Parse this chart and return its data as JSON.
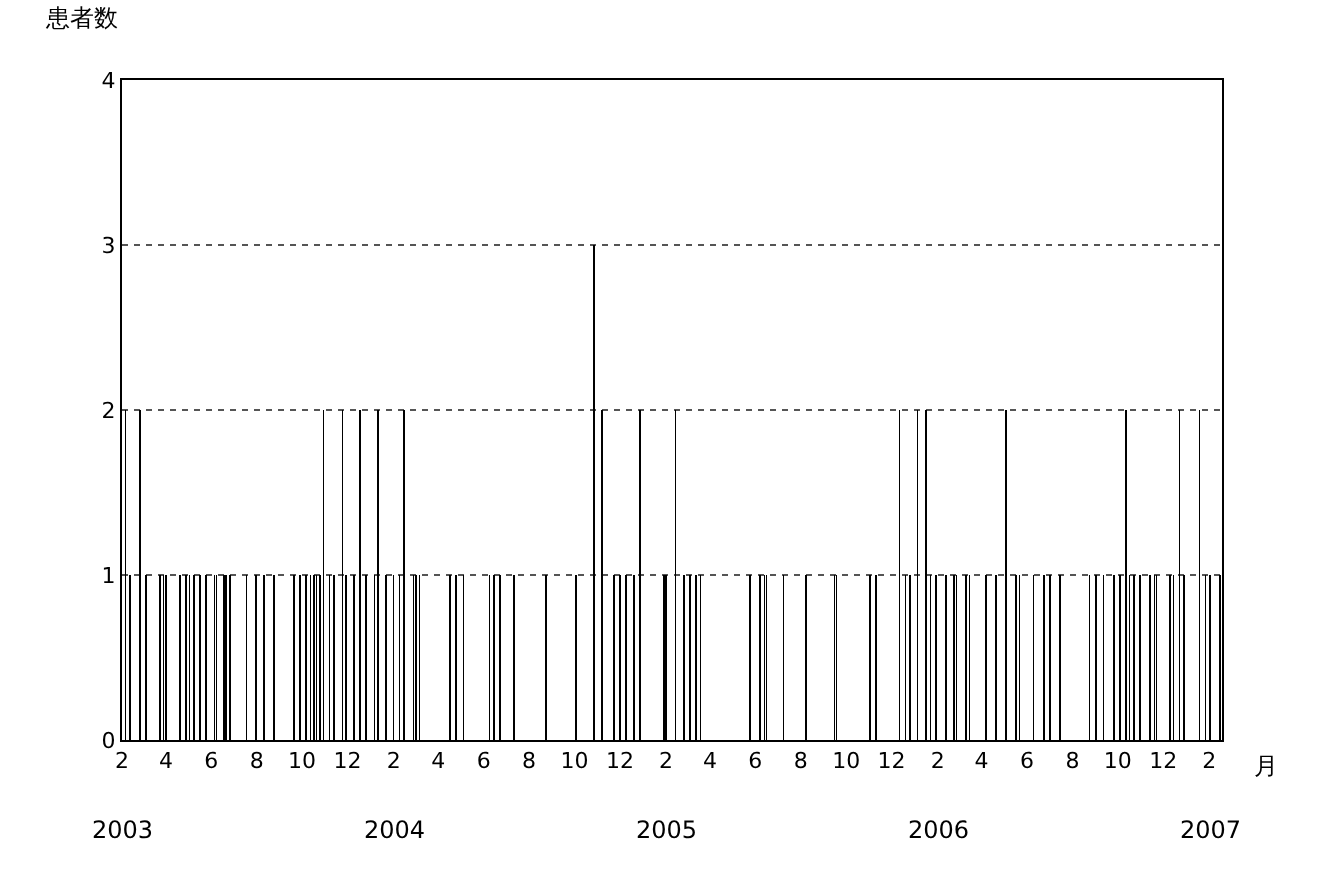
{
  "chart_data": {
    "type": "bar",
    "ylabel": "患者数",
    "xlabel": "月",
    "color": "#000000",
    "grid": "y",
    "annotations": [
      "2003",
      "2004",
      "2005",
      "2006",
      "2007"
    ],
    "xlim": [
      "2003-02-01",
      "2007-02-18"
    ],
    "ylim": [
      0,
      4
    ],
    "yticks": [
      0,
      1,
      2,
      3,
      4
    ],
    "xticks": [
      {
        "value": "2003-02-01",
        "label": "2"
      },
      {
        "value": "2003-04-01",
        "label": "4"
      },
      {
        "value": "2003-06-01",
        "label": "6"
      },
      {
        "value": "2003-08-01",
        "label": "8"
      },
      {
        "value": "2003-10-01",
        "label": "10"
      },
      {
        "value": "2003-12-01",
        "label": "12"
      },
      {
        "value": "2004-02-01",
        "label": "2"
      },
      {
        "value": "2004-04-01",
        "label": "4"
      },
      {
        "value": "2004-06-01",
        "label": "6"
      },
      {
        "value": "2004-08-01",
        "label": "8"
      },
      {
        "value": "2004-10-01",
        "label": "10"
      },
      {
        "value": "2004-12-01",
        "label": "12"
      },
      {
        "value": "2005-02-01",
        "label": "2"
      },
      {
        "value": "2005-04-01",
        "label": "4"
      },
      {
        "value": "2005-06-01",
        "label": "6"
      },
      {
        "value": "2005-08-01",
        "label": "8"
      },
      {
        "value": "2005-10-01",
        "label": "10"
      },
      {
        "value": "2005-12-01",
        "label": "12"
      },
      {
        "value": "2006-02-01",
        "label": "2"
      },
      {
        "value": "2006-04-01",
        "label": "4"
      },
      {
        "value": "2006-06-01",
        "label": "6"
      },
      {
        "value": "2006-08-01",
        "label": "8"
      },
      {
        "value": "2006-10-01",
        "label": "10"
      },
      {
        "value": "2006-12-01",
        "label": "12"
      },
      {
        "value": "2007-02-01",
        "label": "2"
      }
    ],
    "x": [
      "2003-02-06",
      "2003-02-12",
      "2003-02-25",
      "2003-03-05",
      "2003-03-24",
      "2003-03-29",
      "2003-04-01",
      "2003-04-20",
      "2003-04-28",
      "2003-05-03",
      "2003-05-09",
      "2003-05-17",
      "2003-05-25",
      "2003-06-05",
      "2003-06-08",
      "2003-06-18",
      "2003-06-21",
      "2003-06-26",
      "2003-07-18",
      "2003-07-31",
      "2003-08-11",
      "2003-08-24",
      "2003-09-20",
      "2003-09-28",
      "2003-10-06",
      "2003-10-12",
      "2003-10-17",
      "2003-10-20",
      "2003-10-25",
      "2003-10-30",
      "2003-11-07",
      "2003-11-13",
      "2003-11-24",
      "2003-11-29",
      "2003-12-10",
      "2003-12-18",
      "2003-12-26",
      "2004-01-06",
      "2004-01-11",
      "2004-01-22",
      "2004-02-01",
      "2004-02-09",
      "2004-02-15",
      "2004-02-28",
      "2004-03-02",
      "2004-03-07",
      "2004-04-17",
      "2004-04-25",
      "2004-05-05",
      "2004-06-09",
      "2004-06-15",
      "2004-06-23",
      "2004-07-12",
      "2004-08-24",
      "2004-10-03",
      "2004-10-27",
      "2004-11-07",
      "2004-11-23",
      "2004-12-01",
      "2004-12-09",
      "2004-12-20",
      "2004-12-28",
      "2005-01-29",
      "2005-02-01",
      "2005-02-14",
      "2005-02-25",
      "2005-03-05",
      "2005-03-13",
      "2005-03-19",
      "2005-05-25",
      "2005-06-07",
      "2005-06-13",
      "2005-06-16",
      "2005-07-09",
      "2005-08-08",
      "2005-09-15",
      "2005-09-18",
      "2005-11-02",
      "2005-11-10",
      "2005-12-12",
      "2005-12-20",
      "2005-12-26",
      "2006-01-05",
      "2006-01-16",
      "2006-01-22",
      "2006-01-30",
      "2006-02-12",
      "2006-02-23",
      "2006-02-26",
      "2006-03-11",
      "2006-03-16",
      "2006-04-07",
      "2006-04-20",
      "2006-05-04",
      "2006-05-17",
      "2006-05-22",
      "2006-06-10",
      "2006-06-24",
      "2006-07-02",
      "2006-07-15",
      "2006-08-24",
      "2006-09-02",
      "2006-09-12",
      "2006-09-26",
      "2006-10-04",
      "2006-10-12",
      "2006-10-17",
      "2006-10-23",
      "2006-10-31",
      "2006-11-13",
      "2006-11-19",
      "2006-11-22",
      "2006-12-10",
      "2006-12-15",
      "2006-12-23",
      "2006-12-29",
      "2007-01-19",
      "2007-01-27",
      "2007-02-02",
      "2007-02-15"
    ],
    "values": [
      2,
      1,
      2,
      1,
      1,
      1,
      1,
      1,
      1,
      1,
      1,
      1,
      1,
      1,
      1,
      1,
      1,
      1,
      1,
      1,
      1,
      1,
      1,
      1,
      1,
      1,
      1,
      1,
      1,
      2,
      1,
      1,
      2,
      1,
      1,
      2,
      1,
      1,
      2,
      1,
      1,
      1,
      2,
      1,
      1,
      1,
      1,
      1,
      1,
      1,
      1,
      1,
      1,
      1,
      1,
      3,
      2,
      1,
      1,
      1,
      1,
      2,
      1,
      1,
      2,
      1,
      1,
      1,
      1,
      1,
      1,
      1,
      1,
      1,
      1,
      1,
      1,
      1,
      1,
      2,
      1,
      1,
      2,
      2,
      1,
      1,
      1,
      1,
      1,
      1,
      1,
      1,
      1,
      2,
      1,
      1,
      1,
      1,
      1,
      1,
      1,
      1,
      1,
      1,
      1,
      2,
      1,
      1,
      1,
      1,
      1,
      1,
      1,
      1,
      2,
      1,
      2,
      1,
      1,
      1
    ]
  }
}
